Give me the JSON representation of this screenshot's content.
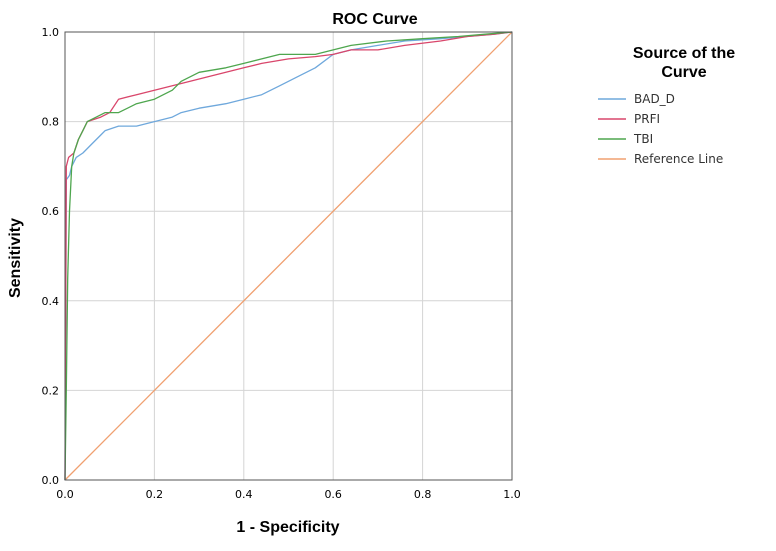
{
  "chart_data": {
    "type": "line",
    "title": "ROC Curve",
    "xlabel": "1 - Specificity",
    "ylabel": "Sensitivity",
    "xlim": [
      0.0,
      1.0
    ],
    "ylim": [
      0.0,
      1.0
    ],
    "x_ticks": [
      "0.0",
      "0.2",
      "0.4",
      "0.6",
      "0.8",
      "1.0"
    ],
    "y_ticks": [
      "0.0",
      "0.2",
      "0.4",
      "0.6",
      "0.8",
      "1.0"
    ],
    "grid": true,
    "legend": {
      "title_lines": [
        "Source of the",
        "Curve"
      ],
      "position": "right"
    },
    "series": [
      {
        "name": "BAD_D",
        "color": "#6fa8dc",
        "points": [
          [
            0.0,
            0.0
          ],
          [
            0.003,
            0.67
          ],
          [
            0.01,
            0.68
          ],
          [
            0.015,
            0.7
          ],
          [
            0.025,
            0.72
          ],
          [
            0.04,
            0.73
          ],
          [
            0.06,
            0.75
          ],
          [
            0.08,
            0.77
          ],
          [
            0.09,
            0.78
          ],
          [
            0.12,
            0.79
          ],
          [
            0.16,
            0.79
          ],
          [
            0.2,
            0.8
          ],
          [
            0.24,
            0.81
          ],
          [
            0.26,
            0.82
          ],
          [
            0.3,
            0.83
          ],
          [
            0.36,
            0.84
          ],
          [
            0.4,
            0.85
          ],
          [
            0.44,
            0.86
          ],
          [
            0.48,
            0.88
          ],
          [
            0.52,
            0.9
          ],
          [
            0.56,
            0.92
          ],
          [
            0.6,
            0.95
          ],
          [
            0.64,
            0.96
          ],
          [
            0.7,
            0.97
          ],
          [
            0.76,
            0.98
          ],
          [
            0.84,
            0.985
          ],
          [
            0.9,
            0.99
          ],
          [
            0.96,
            0.995
          ],
          [
            1.0,
            1.0
          ]
        ]
      },
      {
        "name": "PRFI",
        "color": "#d9466b",
        "points": [
          [
            0.0,
            0.0
          ],
          [
            0.003,
            0.7
          ],
          [
            0.008,
            0.72
          ],
          [
            0.02,
            0.73
          ],
          [
            0.03,
            0.76
          ],
          [
            0.04,
            0.78
          ],
          [
            0.05,
            0.8
          ],
          [
            0.08,
            0.81
          ],
          [
            0.1,
            0.82
          ],
          [
            0.12,
            0.85
          ],
          [
            0.16,
            0.86
          ],
          [
            0.2,
            0.87
          ],
          [
            0.24,
            0.88
          ],
          [
            0.28,
            0.89
          ],
          [
            0.32,
            0.9
          ],
          [
            0.36,
            0.91
          ],
          [
            0.4,
            0.92
          ],
          [
            0.44,
            0.93
          ],
          [
            0.5,
            0.94
          ],
          [
            0.56,
            0.945
          ],
          [
            0.6,
            0.95
          ],
          [
            0.64,
            0.96
          ],
          [
            0.7,
            0.96
          ],
          [
            0.76,
            0.97
          ],
          [
            0.84,
            0.98
          ],
          [
            0.9,
            0.99
          ],
          [
            0.96,
            0.995
          ],
          [
            1.0,
            1.0
          ]
        ]
      },
      {
        "name": "TBI",
        "color": "#4ea64e",
        "points": [
          [
            0.0,
            0.0
          ],
          [
            0.003,
            0.2
          ],
          [
            0.006,
            0.45
          ],
          [
            0.01,
            0.6
          ],
          [
            0.015,
            0.7
          ],
          [
            0.02,
            0.73
          ],
          [
            0.03,
            0.76
          ],
          [
            0.04,
            0.78
          ],
          [
            0.05,
            0.8
          ],
          [
            0.07,
            0.81
          ],
          [
            0.09,
            0.82
          ],
          [
            0.12,
            0.82
          ],
          [
            0.16,
            0.84
          ],
          [
            0.2,
            0.85
          ],
          [
            0.24,
            0.87
          ],
          [
            0.26,
            0.89
          ],
          [
            0.3,
            0.91
          ],
          [
            0.36,
            0.92
          ],
          [
            0.4,
            0.93
          ],
          [
            0.48,
            0.95
          ],
          [
            0.56,
            0.95
          ],
          [
            0.6,
            0.96
          ],
          [
            0.64,
            0.97
          ],
          [
            0.72,
            0.98
          ],
          [
            0.8,
            0.985
          ],
          [
            0.88,
            0.99
          ],
          [
            0.94,
            0.995
          ],
          [
            1.0,
            1.0
          ]
        ]
      },
      {
        "name": "Reference Line",
        "color": "#f0a070",
        "points": [
          [
            0.0,
            0.0
          ],
          [
            1.0,
            1.0
          ]
        ]
      }
    ]
  }
}
